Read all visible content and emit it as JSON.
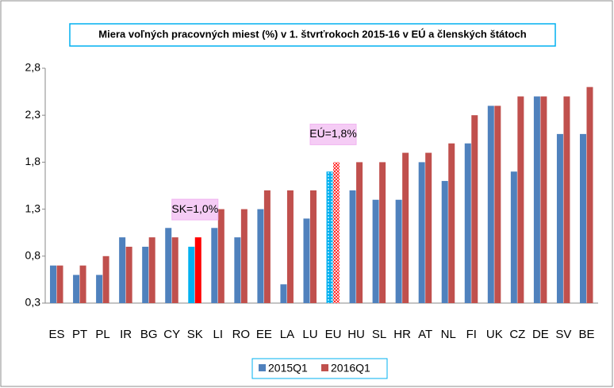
{
  "chart_data": {
    "type": "bar",
    "title": "Miera voľných pracovných miest (%) v 1. štvrťrokoch 2015-16 v EÚ a členských štátoch",
    "categories": [
      "ES",
      "PT",
      "PL",
      "IR",
      "BG",
      "CY",
      "SK",
      "LI",
      "RO",
      "EE",
      "LA",
      "LU",
      "EU",
      "HU",
      "SL",
      "HR",
      "AT",
      "NL",
      "FI",
      "UK",
      "CZ",
      "DE",
      "SV",
      "BE"
    ],
    "series": [
      {
        "name": "2015Q1",
        "color": "#4f81bd",
        "values": [
          0.7,
          0.6,
          0.6,
          1.0,
          0.9,
          1.1,
          0.9,
          1.1,
          1.0,
          1.3,
          0.5,
          1.2,
          1.7,
          1.5,
          1.4,
          1.4,
          1.8,
          1.6,
          2.0,
          2.4,
          1.7,
          2.5,
          2.1,
          2.1
        ]
      },
      {
        "name": "2016Q1",
        "color": "#c0504d",
        "values": [
          0.7,
          0.7,
          0.8,
          0.9,
          1.0,
          1.0,
          1.0,
          1.3,
          1.3,
          1.5,
          1.5,
          1.5,
          1.8,
          1.8,
          1.8,
          1.9,
          1.9,
          2.0,
          2.3,
          2.4,
          2.5,
          2.5,
          2.5,
          2.6
        ]
      }
    ],
    "highlights": [
      {
        "index": 6,
        "colors": [
          "#00b0f0",
          "#ff0000"
        ]
      },
      {
        "index": 12,
        "colors": [
          "#00b0f0",
          "#ff0000"
        ],
        "patterns": [
          "dots",
          "cross"
        ]
      }
    ],
    "annotations": [
      {
        "text": "SK=1,0%",
        "index": 6
      },
      {
        "text": "EÚ=1,8%",
        "index": 12
      }
    ],
    "ylim": [
      0.3,
      2.8
    ],
    "yticks": [
      {
        "value": 0.3,
        "label": "0,3"
      },
      {
        "value": 0.8,
        "label": "0,8"
      },
      {
        "value": 1.3,
        "label": "1,3"
      },
      {
        "value": 1.8,
        "label": "1,8"
      },
      {
        "value": 2.3,
        "label": "2,3"
      },
      {
        "value": 2.8,
        "label": "2,8"
      }
    ],
    "grid": false,
    "legend": "bottom"
  }
}
